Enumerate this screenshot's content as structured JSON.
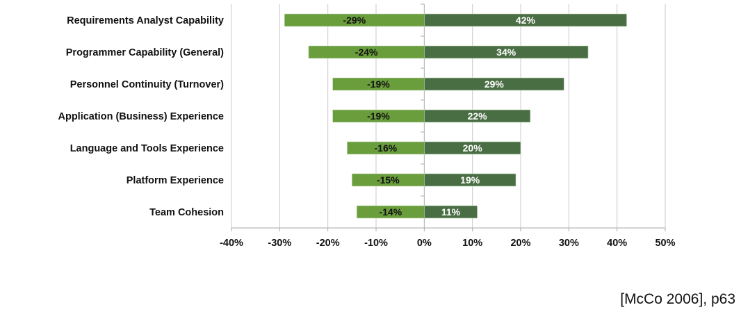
{
  "chart_data": {
    "type": "bar",
    "orientation": "horizontal",
    "stacked": "diverging",
    "categories": [
      "Requirements Analyst Capability",
      "Programmer Capability (General)",
      "Personnel Continuity (Turnover)",
      "Application (Business) Experience",
      "Language and Tools Experience",
      "Platform Experience",
      "Team Cohesion"
    ],
    "series": [
      {
        "values": [
          -29,
          -24,
          -19,
          -19,
          -16,
          -15,
          -14
        ],
        "labels": [
          "-29%",
          "-24%",
          "-19%",
          "-19%",
          "-16%",
          "-15%",
          "-14%"
        ],
        "color": "#6a9e3c",
        "label_color": "#111111"
      },
      {
        "values": [
          42,
          34,
          29,
          22,
          20,
          19,
          11
        ],
        "labels": [
          "42%",
          "34%",
          "29%",
          "22%",
          "20%",
          "19%",
          "11%"
        ],
        "color": "#4a6e44",
        "label_color": "#ffffff"
      }
    ],
    "xlim": [
      -40,
      50
    ],
    "xticks": [
      -40,
      -30,
      -20,
      -10,
      0,
      10,
      20,
      30,
      40,
      50
    ],
    "xtick_labels": [
      "-40%",
      "-30%",
      "-20%",
      "-10%",
      "0%",
      "10%",
      "20%",
      "30%",
      "40%",
      "50%"
    ],
    "grid": "vertical",
    "legend": "none",
    "title": "",
    "xlabel": "",
    "ylabel": ""
  },
  "citation": "[McCo 2006], p63"
}
